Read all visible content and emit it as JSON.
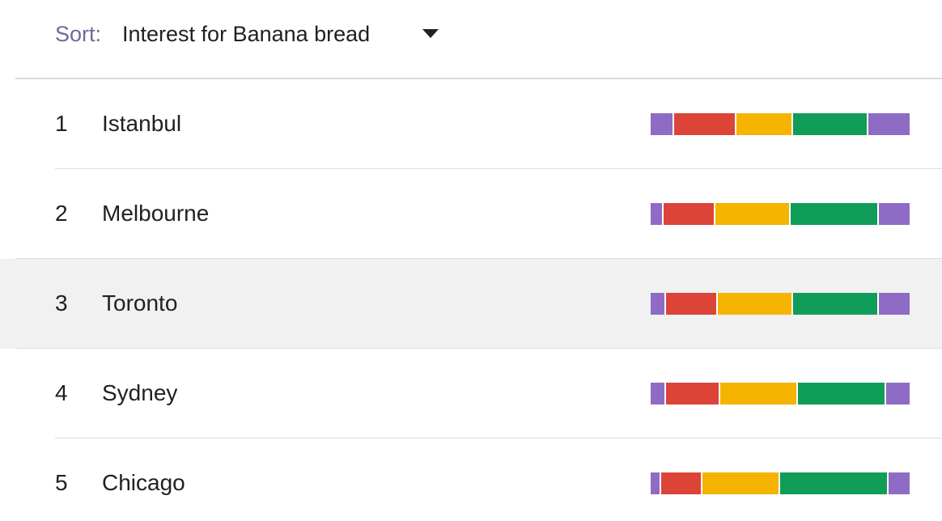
{
  "sort": {
    "label": "Sort:",
    "value": "Interest for Banana bread"
  },
  "colors": [
    "#8e6bc5",
    "#db4437",
    "#f4b400",
    "#0f9d58",
    "#8e6bc5"
  ],
  "rows": [
    {
      "rank": "1",
      "city": "Istanbul",
      "shares": [
        9,
        24,
        22,
        29,
        16
      ]
    },
    {
      "rank": "2",
      "city": "Melbourne",
      "shares": [
        5,
        20,
        29,
        34,
        12
      ]
    },
    {
      "rank": "3",
      "city": "Toronto",
      "shares": [
        6,
        20,
        29,
        33,
        12
      ]
    },
    {
      "rank": "4",
      "city": "Sydney",
      "shares": [
        6,
        21,
        30,
        34,
        9
      ]
    },
    {
      "rank": "5",
      "city": "Chicago",
      "shares": [
        4,
        16,
        30,
        42,
        8
      ]
    }
  ],
  "highlighted_row": 2
}
